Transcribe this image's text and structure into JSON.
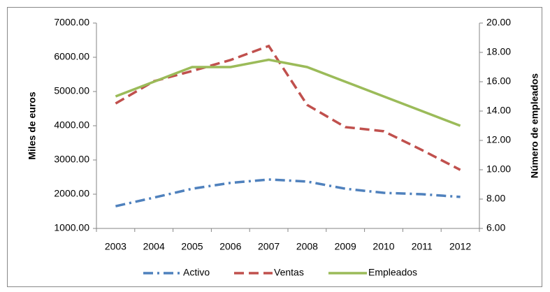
{
  "chart_data": {
    "type": "line",
    "y_label": "Miles de euros",
    "y2_label": "Número de empleados",
    "categories": [
      "2003",
      "2004",
      "2005",
      "2006",
      "2007",
      "2008",
      "2009",
      "2010",
      "2011",
      "2012"
    ],
    "series": [
      {
        "name": "Activo",
        "color": "#4f81bd",
        "dash": "dashdot",
        "values": [
          1650,
          1900,
          2160,
          2330,
          2430,
          2370,
          2160,
          2040,
          2000,
          1920
        ]
      },
      {
        "name": "Ventas",
        "color": "#c0504d",
        "dash": "dash",
        "values": [
          4650,
          5300,
          5600,
          5920,
          6330,
          4610,
          3960,
          3840,
          3290,
          2710
        ]
      },
      {
        "name": "Empleados",
        "color": "#9bbb59",
        "dash": "solid",
        "axis": "y2",
        "values": [
          15,
          16,
          17,
          17,
          17.5,
          17,
          16,
          15,
          14,
          13
        ]
      }
    ],
    "ylim": [
      1000,
      7000
    ],
    "yticks": [
      {
        "value": 1000,
        "label": "1000.00"
      },
      {
        "value": 2000,
        "label": "2000.00"
      },
      {
        "value": 3000,
        "label": "3000.00"
      },
      {
        "value": 4000,
        "label": "4000.00"
      },
      {
        "value": 5000,
        "label": "5000.00"
      },
      {
        "value": 6000,
        "label": "6000.00"
      },
      {
        "value": 7000,
        "label": "7000.00"
      }
    ],
    "y2lim": [
      6,
      20
    ],
    "y2ticks": [
      {
        "value": 6,
        "label": "6.00"
      },
      {
        "value": 8,
        "label": "8.00"
      },
      {
        "value": 10,
        "label": "10.00"
      },
      {
        "value": 12,
        "label": "12.00"
      },
      {
        "value": 14,
        "label": "14.00"
      },
      {
        "value": 16,
        "label": "16.00"
      },
      {
        "value": 18,
        "label": "18.00"
      },
      {
        "value": 20,
        "label": "20.00"
      }
    ],
    "legend": "bottom"
  }
}
